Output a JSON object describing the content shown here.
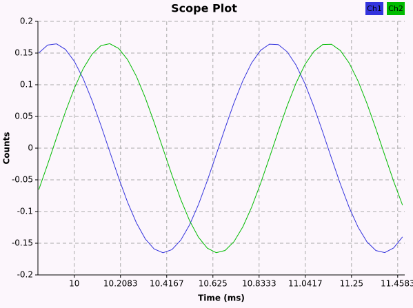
{
  "chart_data": {
    "type": "line",
    "title": "Scope Plot",
    "xlabel": "Time (ms)",
    "ylabel": "Counts",
    "x": [
      9.84,
      9.88,
      9.92,
      9.96,
      10.0,
      10.04,
      10.08,
      10.12,
      10.16,
      10.2,
      10.24,
      10.28,
      10.32,
      10.36,
      10.4,
      10.44,
      10.48,
      10.52,
      10.56,
      10.6,
      10.64,
      10.68,
      10.72,
      10.76,
      10.8,
      10.84,
      10.88,
      10.92,
      10.96,
      11.0,
      11.04,
      11.08,
      11.12,
      11.16,
      11.2,
      11.24,
      11.28,
      11.32,
      11.36,
      11.4,
      11.44,
      11.48
    ],
    "series": [
      {
        "name": "Ch1",
        "color": "#3333dd",
        "values": [
          0.1503,
          0.1626,
          0.1645,
          0.1558,
          0.1371,
          0.1097,
          0.0752,
          0.036,
          -0.0056,
          -0.0469,
          -0.0851,
          -0.1178,
          -0.1431,
          -0.1591,
          -0.165,
          -0.1602,
          -0.1452,
          -0.1209,
          -0.0889,
          -0.0511,
          -0.0101,
          0.0316,
          0.0713,
          0.1063,
          0.1347,
          0.1543,
          0.164,
          0.1633,
          0.152,
          0.131,
          0.1017,
          0.0658,
          0.0257,
          -0.0161,
          -0.0568,
          -0.0939,
          -0.1249,
          -0.148,
          -0.1616,
          -0.1648,
          -0.1574,
          -0.14
        ]
      },
      {
        "name": "Ch2",
        "color": "#00bb00",
        "values": [
          -0.0654,
          -0.0253,
          0.0165,
          0.0572,
          0.0943,
          0.1253,
          0.1482,
          0.1617,
          0.1648,
          0.1573,
          0.1398,
          0.1134,
          0.0795,
          0.0407,
          -0.0008,
          -0.0422,
          -0.0809,
          -0.1145,
          -0.1406,
          -0.1578,
          -0.1649,
          -0.1614,
          -0.1475,
          -0.1242,
          -0.0929,
          -0.0557,
          -0.0149,
          0.0268,
          0.0669,
          0.1026,
          0.1318,
          0.1525,
          0.1634,
          0.1639,
          0.1539,
          0.134,
          0.1055,
          0.0702,
          0.0305,
          -0.0112,
          -0.0522,
          -0.0898
        ]
      }
    ],
    "xlim": [
      9.836,
      11.49
    ],
    "ylim": [
      -0.2,
      0.2
    ],
    "xticks": [
      10,
      10.2083,
      10.4167,
      10.625,
      10.8333,
      11.0417,
      11.25,
      11.4583
    ],
    "yticks": [
      -0.2,
      -0.15,
      -0.1,
      -0.05,
      0,
      0.05,
      0.1,
      0.15,
      0.2
    ],
    "grid": true,
    "legend": "top-right"
  }
}
